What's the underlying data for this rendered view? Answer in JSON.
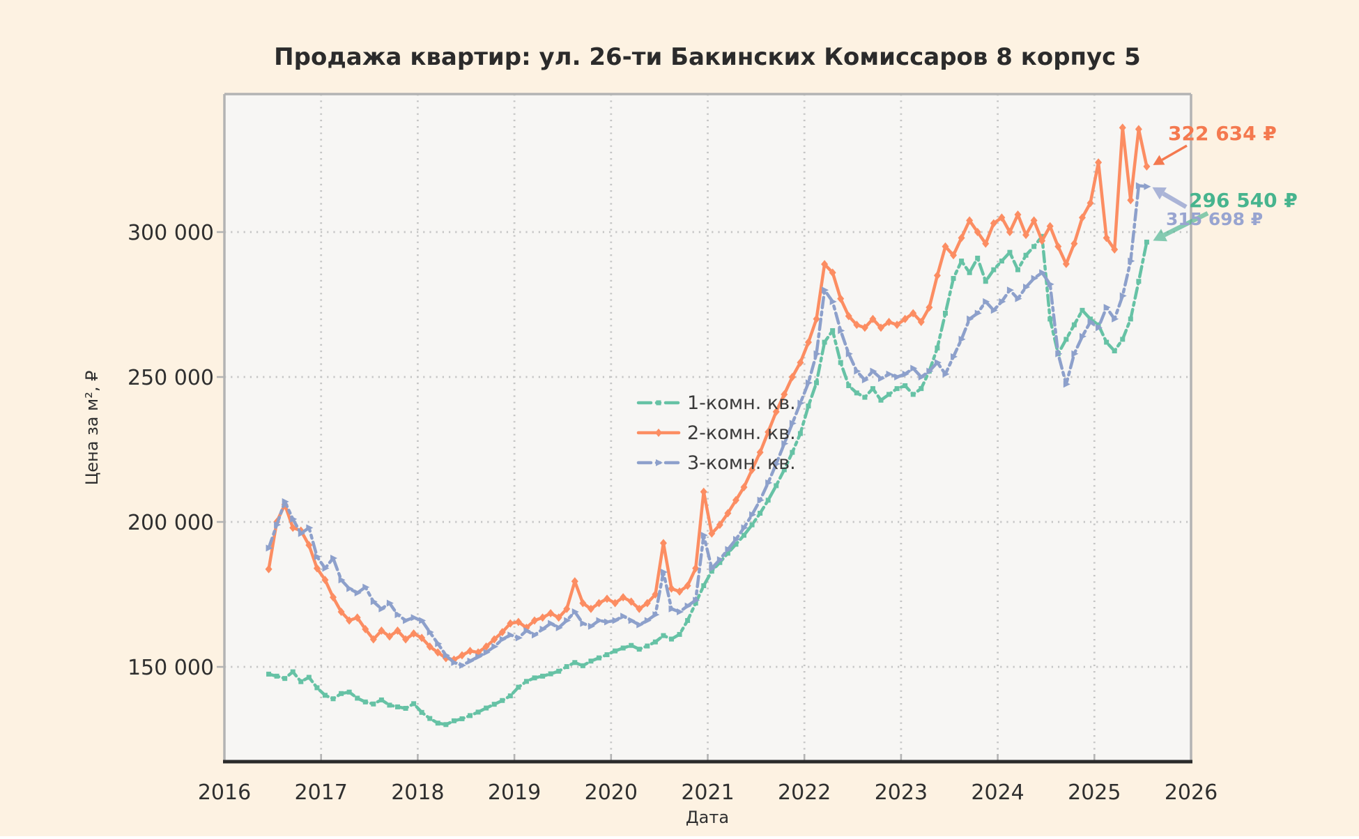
{
  "title": "Продажа квартир: ул. 26-ти Бакинских Комиссаров 8 корпус 5",
  "axes": {
    "xlabel": "Дата",
    "ylabel": "Цена за м², ₽",
    "x_ticks": [
      "2016",
      "2017",
      "2018",
      "2019",
      "2020",
      "2021",
      "2022",
      "2023",
      "2024",
      "2025",
      "2026"
    ],
    "y_ticks": [
      "150 000",
      "200 000",
      "250 000",
      "300 000"
    ]
  },
  "legend": {
    "items": [
      "1-комн. кв.",
      "2-комн. кв.",
      "3-комн. кв."
    ]
  },
  "annotations": [
    {
      "text": "322 634 ₽",
      "series": "2-комн. кв.",
      "color": "#f4794f"
    },
    {
      "text": "296 540 ₽",
      "series": "1-комн. кв.",
      "color": "#47b48e"
    },
    {
      "text": "315 698 ₽",
      "series": "3-комн. кв.",
      "color": "#98a4d0"
    }
  ],
  "colors": {
    "figure_background": "#fdf2e2",
    "plot_background": "#f7f6f4",
    "grid": "#c5c5c5",
    "spine_light": "#b3b3b3",
    "spine_dark": "#2b2b2b",
    "text": "#2f2f2f",
    "series_1": "#66c2a5",
    "series_2": "#fc8d62",
    "series_3": "#8da0cb"
  },
  "chart_data": {
    "type": "line",
    "title": "Продажа квартир: ул. 26-ти Бакинских Комиссаров 8 корпус 5",
    "xlabel": "Дата",
    "ylabel": "Цена за м², ₽",
    "xlim": [
      2016,
      2026
    ],
    "ylim": [
      117000,
      348000
    ],
    "grid": true,
    "legend_position": "center",
    "y_grid_values": [
      150000,
      200000,
      250000,
      300000
    ],
    "x_grid_years": [
      2016,
      2017,
      2018,
      2019,
      2020,
      2021,
      2022,
      2023,
      2024,
      2025,
      2026
    ],
    "x": [
      "2016-06",
      "2016-07",
      "2016-08",
      "2016-09",
      "2016-10",
      "2016-11",
      "2016-12",
      "2017-01",
      "2017-02",
      "2017-03",
      "2017-04",
      "2017-05",
      "2017-06",
      "2017-07",
      "2017-08",
      "2017-09",
      "2017-10",
      "2017-11",
      "2017-12",
      "2018-01",
      "2018-02",
      "2018-03",
      "2018-04",
      "2018-05",
      "2018-06",
      "2018-07",
      "2018-08",
      "2018-09",
      "2018-10",
      "2018-11",
      "2018-12",
      "2019-01",
      "2019-02",
      "2019-03",
      "2019-04",
      "2019-05",
      "2019-06",
      "2019-07",
      "2019-08",
      "2019-09",
      "2019-10",
      "2019-11",
      "2019-12",
      "2020-01",
      "2020-02",
      "2020-03",
      "2020-04",
      "2020-05",
      "2020-06",
      "2020-07",
      "2020-08",
      "2020-09",
      "2020-10",
      "2020-11",
      "2020-12",
      "2021-01",
      "2021-02",
      "2021-03",
      "2021-04",
      "2021-05",
      "2021-06",
      "2021-07",
      "2021-08",
      "2021-09",
      "2021-10",
      "2021-11",
      "2021-12",
      "2022-01",
      "2022-02",
      "2022-03",
      "2022-04",
      "2022-05",
      "2022-06",
      "2022-07",
      "2022-08",
      "2022-09",
      "2022-10",
      "2022-11",
      "2022-12",
      "2023-01",
      "2023-02",
      "2023-03",
      "2023-04",
      "2023-05",
      "2023-06",
      "2023-07",
      "2023-08",
      "2023-09",
      "2023-10",
      "2023-11",
      "2023-12",
      "2024-01",
      "2024-02",
      "2024-03",
      "2024-04",
      "2024-05",
      "2024-06",
      "2024-07",
      "2024-08",
      "2024-09",
      "2024-10",
      "2024-11",
      "2024-12",
      "2025-01",
      "2025-02",
      "2025-03",
      "2025-04",
      "2025-05",
      "2025-06",
      "2025-07"
    ],
    "series": [
      {
        "name": "1-комн. кв.",
        "color": "#66c2a5",
        "marker": "square",
        "line_style": "dashdot",
        "final_value": 296540,
        "values": [
          147500,
          146800,
          146000,
          148300,
          144900,
          146400,
          142800,
          140200,
          139000,
          140800,
          141300,
          139200,
          137900,
          137200,
          138600,
          136800,
          136200,
          135700,
          137300,
          134300,
          132200,
          130600,
          130100,
          131400,
          132100,
          133200,
          134400,
          135800,
          137100,
          138400,
          140000,
          143000,
          145000,
          146200,
          146800,
          147600,
          148500,
          150100,
          151500,
          150400,
          152000,
          153100,
          154200,
          155500,
          156500,
          157400,
          156100,
          157200,
          158600,
          160800,
          159600,
          161200,
          166000,
          172000,
          178000,
          183000,
          186000,
          189200,
          192300,
          195400,
          199000,
          203000,
          207500,
          212500,
          218000,
          224000,
          230500,
          240000,
          248000,
          262000,
          266000,
          255000,
          247000,
          244500,
          243000,
          246000,
          242000,
          244000,
          246000,
          247000,
          244000,
          246000,
          252000,
          260000,
          272000,
          284000,
          290000,
          286000,
          291000,
          283000,
          287000,
          290000,
          293000,
          287000,
          292000,
          295000,
          298500,
          270000,
          258000,
          263000,
          268000,
          273000,
          270000,
          268000,
          262000,
          259000,
          263000,
          270000,
          283000,
          296540
        ]
      },
      {
        "name": "2-комн. кв.",
        "color": "#fc8d62",
        "marker": "diamond",
        "line_style": "solid",
        "final_value": 322634,
        "values": [
          183700,
          200000,
          206000,
          198000,
          197000,
          192000,
          184000,
          180000,
          174000,
          169000,
          166000,
          167000,
          163000,
          159500,
          162500,
          160500,
          162500,
          159500,
          161500,
          160000,
          157000,
          155000,
          153000,
          152500,
          154000,
          155500,
          155000,
          157000,
          159500,
          162000,
          165000,
          165500,
          163500,
          166000,
          167000,
          168500,
          167000,
          170000,
          179500,
          172000,
          170000,
          172000,
          173500,
          172000,
          174000,
          172500,
          170000,
          172000,
          175000,
          192700,
          177000,
          176000,
          178000,
          184000,
          210400,
          196000,
          199000,
          203000,
          207500,
          212000,
          218000,
          224000,
          231000,
          238000,
          244000,
          250000,
          255000,
          262000,
          270000,
          288900,
          286000,
          277000,
          271000,
          268000,
          267000,
          270000,
          267000,
          269000,
          268000,
          270000,
          272000,
          269000,
          274000,
          285000,
          295000,
          292000,
          298000,
          304000,
          300000,
          296000,
          303000,
          305000,
          300000,
          306000,
          299000,
          304000,
          297000,
          302000,
          295000,
          289000,
          296000,
          305000,
          310000,
          324000,
          298000,
          294000,
          336000,
          311000,
          335500,
          322634
        ]
      },
      {
        "name": "3-комн. кв.",
        "color": "#8da0cb",
        "marker": "triangle-right",
        "line_style": "dashdot",
        "final_value": 315698,
        "values": [
          191000,
          199000,
          207000,
          201000,
          196000,
          198000,
          188000,
          184000,
          187500,
          180000,
          177000,
          175500,
          177500,
          172500,
          170000,
          172000,
          168000,
          166000,
          167000,
          166000,
          162000,
          158000,
          154000,
          151500,
          150500,
          152000,
          153500,
          155000,
          157000,
          159500,
          161000,
          160000,
          162500,
          161000,
          163000,
          165000,
          163500,
          166000,
          169000,
          165000,
          164000,
          166000,
          165500,
          166000,
          167500,
          166000,
          164500,
          166000,
          168000,
          182700,
          170000,
          169000,
          171000,
          173000,
          195400,
          184000,
          187000,
          190500,
          194000,
          198000,
          202500,
          207500,
          213500,
          220000,
          227000,
          234000,
          241000,
          248000,
          258000,
          280000,
          276000,
          266000,
          258000,
          252000,
          249000,
          252000,
          249500,
          251000,
          250000,
          251000,
          253000,
          250000,
          252000,
          255000,
          251000,
          257000,
          263000,
          270000,
          272000,
          276000,
          273000,
          276000,
          280000,
          277000,
          281000,
          284000,
          286000,
          282000,
          258000,
          247500,
          258000,
          264000,
          269000,
          267000,
          274000,
          270000,
          278000,
          290000,
          316000,
          315698
        ]
      }
    ]
  }
}
